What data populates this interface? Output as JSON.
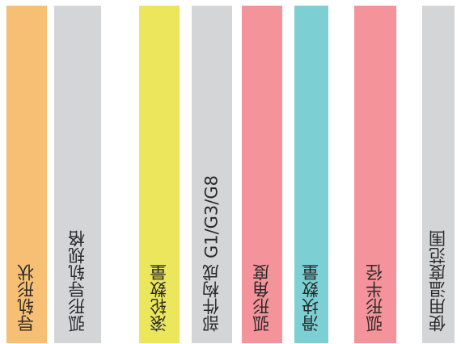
{
  "columns": [
    {
      "label": "导轨形状",
      "color": "#f6bf73"
    },
    {
      "label": "弧形导轨规格",
      "color": "#d4d5d6"
    },
    {
      "label": "滚轮数量",
      "color": "#ece65c"
    },
    {
      "label": "部件构成  G1/G3/G8",
      "color": "#d4d5d6"
    },
    {
      "label": "弧形角度",
      "color": "#f4939a"
    },
    {
      "label": "滑块数量",
      "color": "#7ccfd3"
    },
    {
      "label": "弧形半径",
      "color": "#f4939a"
    },
    {
      "label": "使用温度范围",
      "color": "#d4d5d6"
    }
  ]
}
